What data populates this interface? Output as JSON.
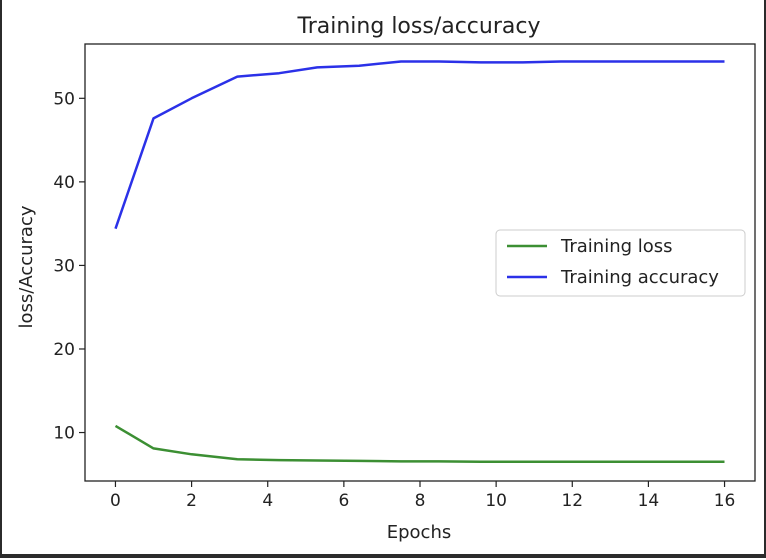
{
  "chart_data": {
    "type": "line",
    "title": "Training loss/accuracy",
    "xlabel": "Epochs",
    "ylabel": "loss/Accuracy",
    "xlim": [
      -0.8,
      16.8
    ],
    "ylim": [
      4.2,
      56.5
    ],
    "xticks": [
      0,
      2,
      4,
      6,
      8,
      10,
      12,
      14,
      16
    ],
    "yticks": [
      10,
      20,
      30,
      40,
      50
    ],
    "grid": false,
    "legend_position": "center-right",
    "series": [
      {
        "name": "Training loss",
        "color": "#3c8f33",
        "x": [
          0,
          1,
          2,
          3.2,
          4.3,
          5.3,
          6.4,
          7.5,
          8.5,
          9.6,
          10.7,
          11.7,
          12.8,
          13.9,
          14.9,
          16
        ],
        "y": [
          10.8,
          8.1,
          7.4,
          6.8,
          6.7,
          6.65,
          6.6,
          6.55,
          6.55,
          6.5,
          6.5,
          6.5,
          6.5,
          6.5,
          6.5,
          6.5
        ]
      },
      {
        "name": "Training accuracy",
        "color": "#2b31e8",
        "x": [
          0,
          1,
          2,
          3.2,
          4.3,
          5.3,
          6.4,
          7.5,
          8.5,
          9.6,
          10.7,
          11.7,
          12.8,
          13.9,
          14.9,
          16
        ],
        "y": [
          34.4,
          47.6,
          50.0,
          52.6,
          53.0,
          53.7,
          53.9,
          54.4,
          54.4,
          54.3,
          54.3,
          54.4,
          54.4,
          54.4,
          54.4,
          54.4
        ]
      }
    ]
  }
}
